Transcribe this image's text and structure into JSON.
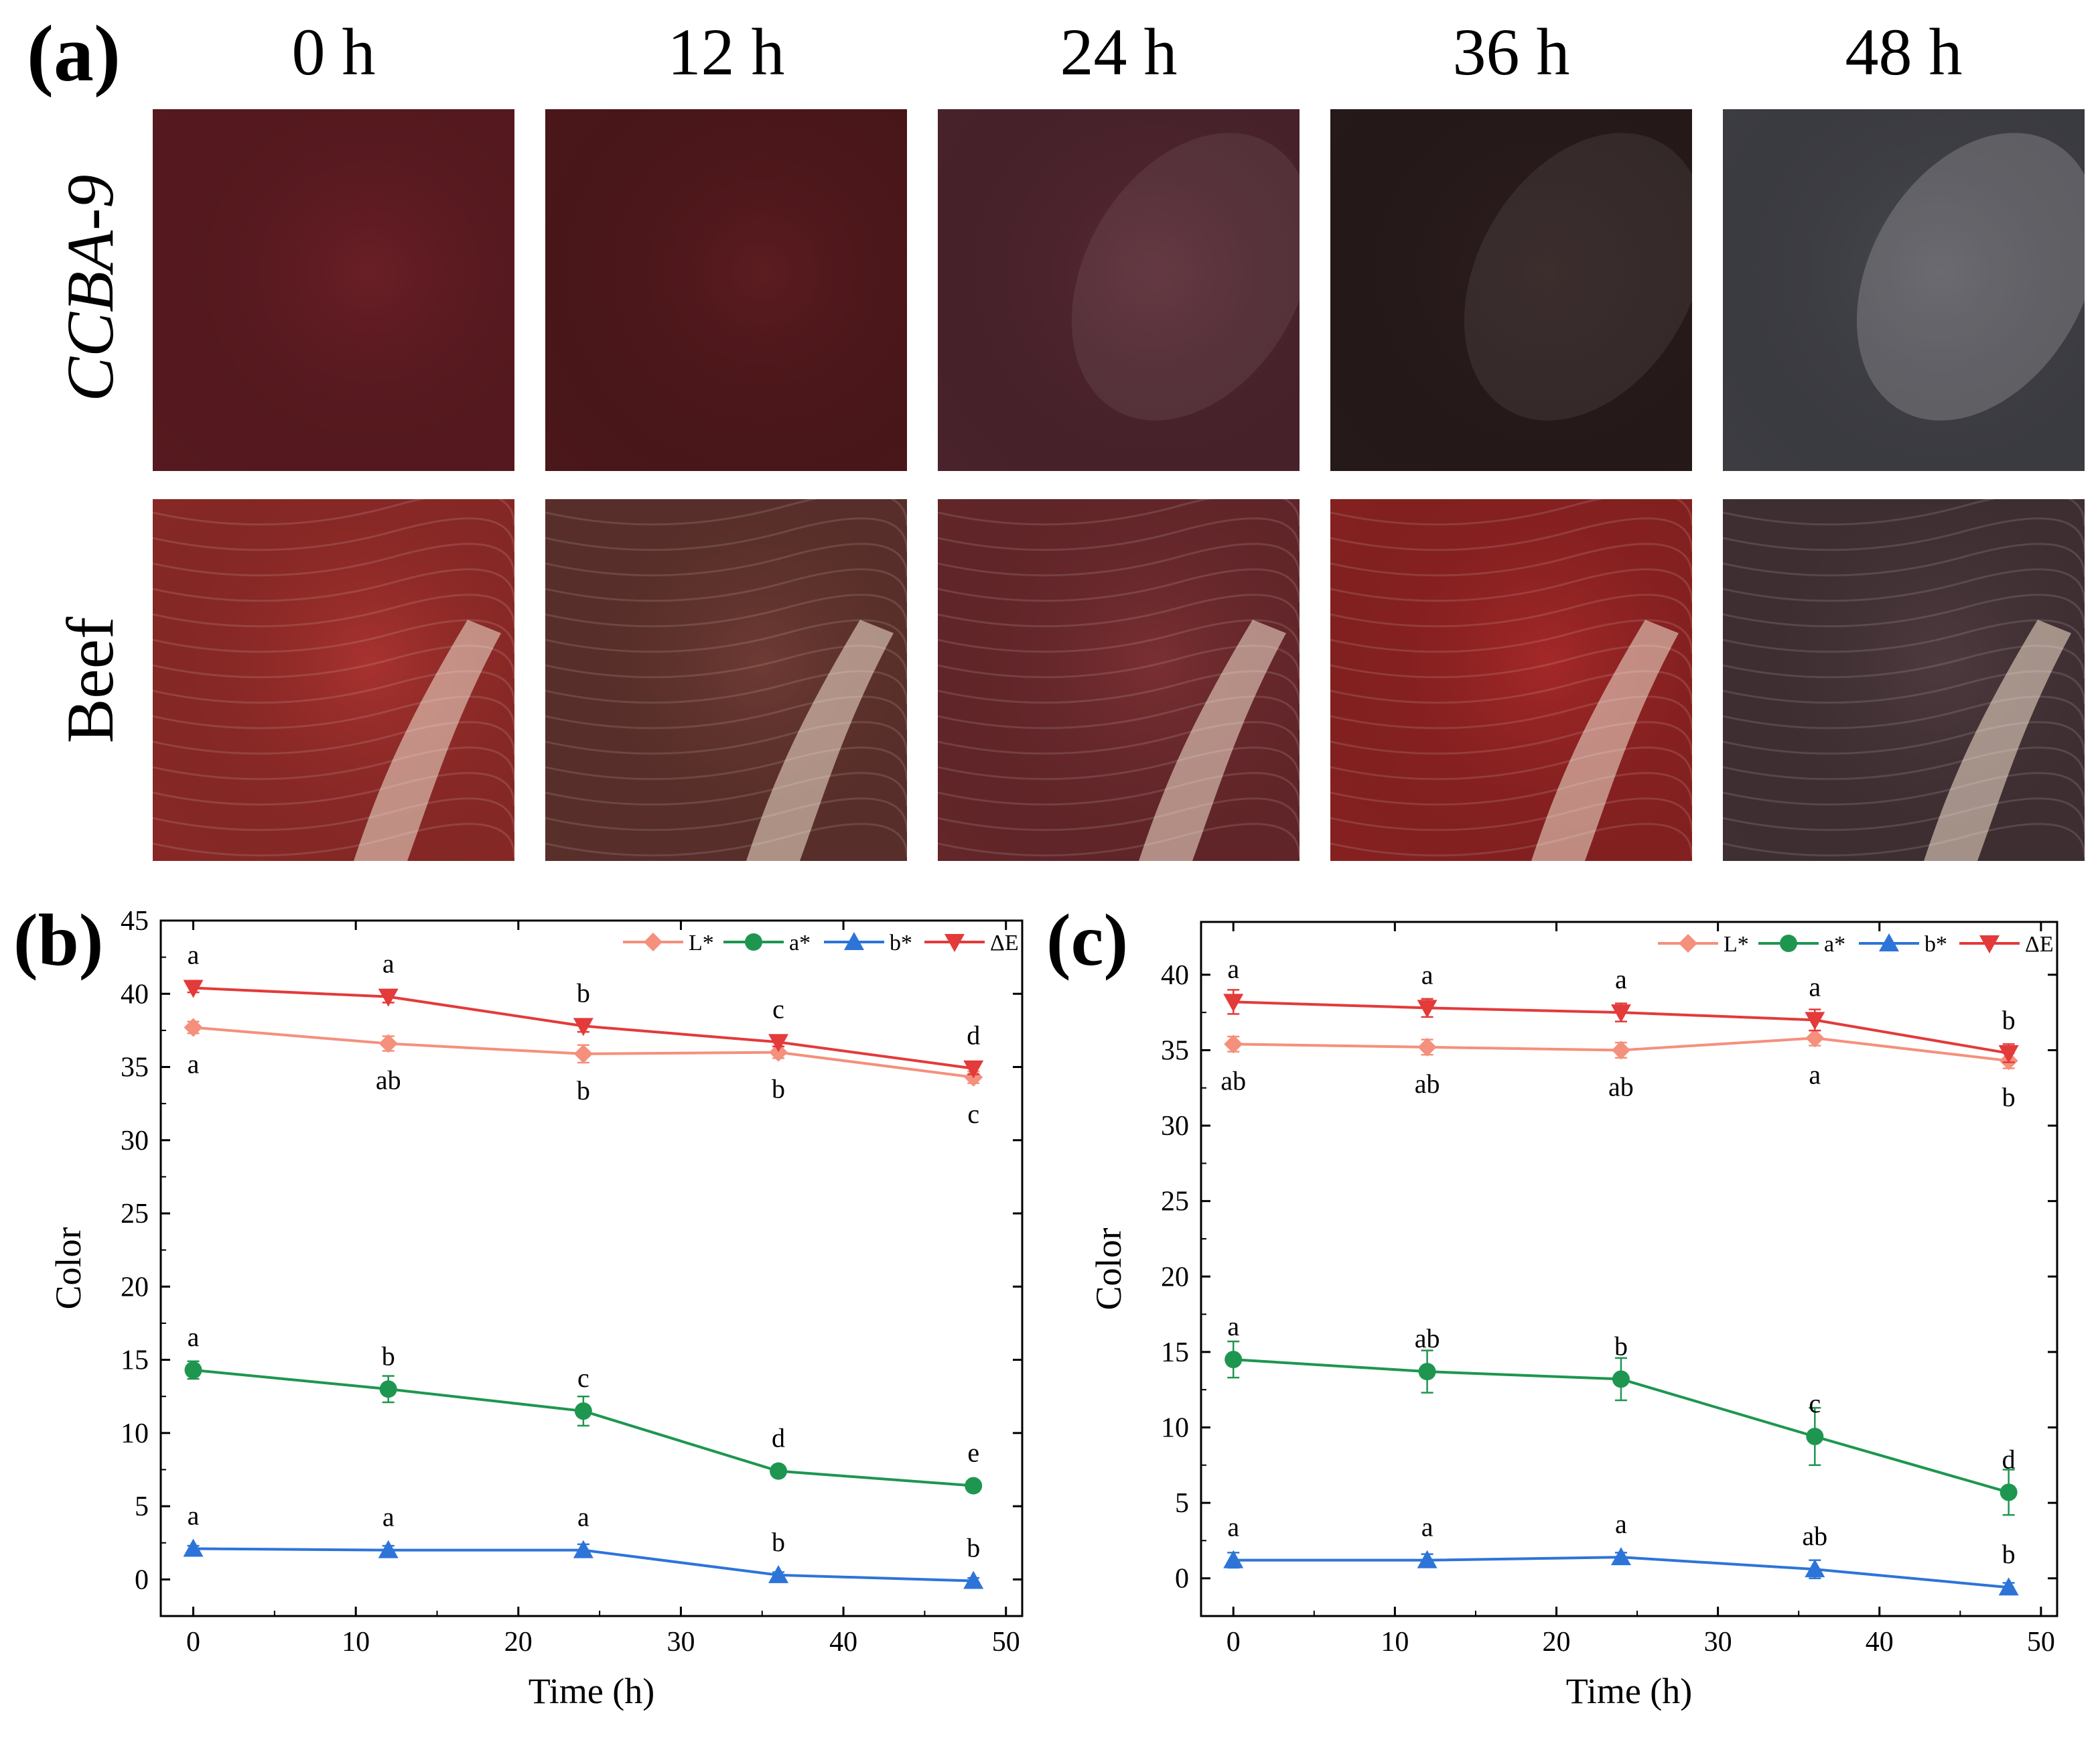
{
  "panel_a": {
    "label": "(a)",
    "columns": [
      "0 h",
      "12 h",
      "24 h",
      "36 h",
      "48 h"
    ],
    "rows": [
      {
        "label": "CCBA-9",
        "colors": [
          "#6a1f26",
          "#5c1c20",
          "#5a2a35",
          "#2f1f1f",
          "#4a4a52"
        ]
      },
      {
        "label": "Beef",
        "colors": [
          "#a8322f",
          "#6e3a34",
          "#7a2f33",
          "#a52828",
          "#4e3a3e"
        ]
      }
    ]
  },
  "chart_data": [
    {
      "panel": "(b)",
      "type": "line",
      "xlabel": "Time (h)",
      "ylabel": "Color",
      "xlim": [
        -2,
        51
      ],
      "ylim": [
        -2.5,
        45
      ],
      "xticks": [
        0,
        10,
        20,
        30,
        40,
        50
      ],
      "yticks": [
        0,
        5,
        10,
        15,
        20,
        25,
        30,
        35,
        40,
        45
      ],
      "x": [
        0,
        12,
        24,
        36,
        48
      ],
      "legend": "top-right",
      "series": [
        {
          "name": "L*",
          "color": "#f4907c",
          "marker": "diamond",
          "values": [
            37.7,
            36.6,
            35.9,
            36.0,
            34.3
          ],
          "errors": [
            0.4,
            0.5,
            0.6,
            0.4,
            0.4
          ],
          "letters": [
            "a",
            "ab",
            "b",
            "b",
            "c"
          ],
          "letter_pos": "below"
        },
        {
          "name": "a*",
          "color": "#1e9650",
          "marker": "circle",
          "values": [
            14.3,
            13.0,
            11.5,
            7.4,
            6.4
          ],
          "errors": [
            0.6,
            0.9,
            1.0,
            0.3,
            0.3
          ],
          "letters": [
            "a",
            "b",
            "c",
            "d",
            "e"
          ],
          "letter_pos": "above"
        },
        {
          "name": "b*",
          "color": "#2d74d8",
          "marker": "triangle-up",
          "values": [
            2.1,
            2.0,
            2.0,
            0.3,
            -0.1
          ],
          "errors": [
            0.2,
            0.3,
            0.4,
            0.2,
            0.2
          ],
          "letters": [
            "a",
            "a",
            "a",
            "b",
            "b"
          ],
          "letter_pos": "above"
        },
        {
          "name": "ΔE",
          "color": "#e33a3a",
          "marker": "triangle-down",
          "values": [
            40.4,
            39.8,
            37.8,
            36.7,
            34.9
          ],
          "errors": [
            0.3,
            0.4,
            0.4,
            0.3,
            0.4
          ],
          "letters": [
            "a",
            "a",
            "b",
            "c",
            "d"
          ],
          "letter_pos": "above"
        }
      ]
    },
    {
      "panel": "(c)",
      "type": "line",
      "xlabel": "Time (h)",
      "ylabel": "Color",
      "xlim": [
        -2,
        51
      ],
      "ylim": [
        -2.5,
        43.5
      ],
      "xticks": [
        0,
        10,
        20,
        30,
        40,
        50
      ],
      "yticks": [
        0,
        5,
        10,
        15,
        20,
        25,
        30,
        35,
        40
      ],
      "x": [
        0,
        12,
        24,
        36,
        48
      ],
      "legend": "top-right",
      "series": [
        {
          "name": "L*",
          "color": "#f4907c",
          "marker": "diamond",
          "values": [
            35.4,
            35.2,
            35.0,
            35.8,
            34.3
          ],
          "errors": [
            0.5,
            0.5,
            0.5,
            0.5,
            0.5
          ],
          "letters": [
            "ab",
            "ab",
            "ab",
            "a",
            "b"
          ],
          "letter_pos": "below"
        },
        {
          "name": "a*",
          "color": "#1e9650",
          "marker": "circle",
          "values": [
            14.5,
            13.7,
            13.2,
            9.4,
            5.7
          ],
          "errors": [
            1.2,
            1.4,
            1.4,
            1.9,
            1.5
          ],
          "letters": [
            "a",
            "ab",
            "b",
            "c",
            "d"
          ],
          "letter_pos": "above"
        },
        {
          "name": "b*",
          "color": "#2d74d8",
          "marker": "triangle-up",
          "values": [
            1.2,
            1.2,
            1.4,
            0.6,
            -0.6
          ],
          "errors": [
            0.5,
            0.4,
            0.3,
            0.6,
            0.3
          ],
          "letters": [
            "a",
            "a",
            "a",
            "ab",
            "b"
          ],
          "letter_pos": "above"
        },
        {
          "name": "ΔE",
          "color": "#e33a3a",
          "marker": "triangle-down",
          "values": [
            38.2,
            37.8,
            37.5,
            37.0,
            34.8
          ],
          "errors": [
            0.8,
            0.6,
            0.6,
            0.7,
            0.6
          ],
          "letters": [
            "a",
            "a",
            "a",
            "a",
            "b"
          ],
          "letter_pos": "above"
        }
      ]
    }
  ]
}
